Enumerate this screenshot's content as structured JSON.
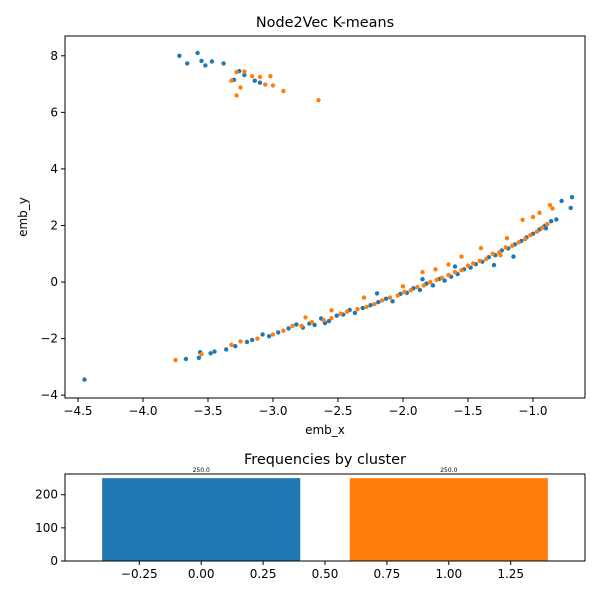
{
  "chart_data": [
    {
      "type": "scatter",
      "title": "Node2Vec K-means",
      "xlabel": "emb_x",
      "ylabel": "emb_y",
      "xlim": [
        -4.6,
        -0.6
      ],
      "ylim": [
        -4.1,
        8.7
      ],
      "xticks": [
        -4.5,
        -4.0,
        -3.5,
        -3.0,
        -2.5,
        -2.0,
        -1.5,
        -1.0
      ],
      "xtick_labels": [
        "−4.5",
        "−4.0",
        "−3.5",
        "−3.0",
        "−2.5",
        "−2.0",
        "−1.5",
        "−1.0"
      ],
      "yticks": [
        -4,
        -2,
        0,
        2,
        4,
        6,
        8
      ],
      "ytick_labels": [
        "−4",
        "−2",
        "0",
        "2",
        "4",
        "6",
        "8"
      ],
      "grid": false,
      "series": [
        {
          "color": "#1f77b4",
          "points": [
            [
              -3.72,
              8.0
            ],
            [
              -3.58,
              8.1
            ],
            [
              -3.55,
              7.82
            ],
            [
              -3.47,
              7.8
            ],
            [
              -3.38,
              7.73
            ],
            [
              -3.66,
              7.73
            ],
            [
              -3.52,
              7.66
            ],
            [
              -3.26,
              7.46
            ],
            [
              -3.22,
              7.32
            ],
            [
              -3.3,
              7.15
            ],
            [
              -3.14,
              7.12
            ],
            [
              -3.1,
              7.05
            ],
            [
              -4.45,
              -3.45
            ],
            [
              -3.67,
              -2.72
            ],
            [
              -3.57,
              -2.68
            ],
            [
              -3.56,
              -2.48
            ],
            [
              -3.48,
              -2.52
            ],
            [
              -3.45,
              -2.46
            ],
            [
              -3.36,
              -2.38
            ],
            [
              -3.29,
              -2.27
            ],
            [
              -3.2,
              -2.12
            ],
            [
              -3.16,
              -2.05
            ],
            [
              -3.08,
              -1.85
            ],
            [
              -3.03,
              -1.92
            ],
            [
              -2.96,
              -1.78
            ],
            [
              -2.88,
              -1.64
            ],
            [
              -2.82,
              -1.5
            ],
            [
              -2.77,
              -1.61
            ],
            [
              -2.72,
              -1.47
            ],
            [
              -2.68,
              -1.52
            ],
            [
              -2.63,
              -1.29
            ],
            [
              -2.57,
              -1.38
            ],
            [
              -2.51,
              -1.19
            ],
            [
              -2.46,
              -1.15
            ],
            [
              -2.41,
              -0.99
            ],
            [
              -2.37,
              -1.09
            ],
            [
              -2.31,
              -0.92
            ],
            [
              -2.25,
              -0.82
            ],
            [
              -2.19,
              -0.71
            ],
            [
              -2.13,
              -0.59
            ],
            [
              -2.08,
              -0.68
            ],
            [
              -2.02,
              -0.42
            ],
            [
              -1.97,
              -0.38
            ],
            [
              -1.92,
              -0.22
            ],
            [
              -1.87,
              -0.28
            ],
            [
              -1.82,
              -0.06
            ],
            [
              -1.77,
              -0.12
            ],
            [
              -1.72,
              0.11
            ],
            [
              -1.68,
              0.05
            ],
            [
              -1.63,
              0.19
            ],
            [
              -1.58,
              0.28
            ],
            [
              -1.53,
              0.45
            ],
            [
              -1.48,
              0.51
            ],
            [
              -1.44,
              0.63
            ],
            [
              -1.39,
              0.72
            ],
            [
              -1.34,
              0.88
            ],
            [
              -1.29,
              0.95
            ],
            [
              -1.24,
              1.12
            ],
            [
              -1.19,
              1.19
            ],
            [
              -1.14,
              1.33
            ],
            [
              -1.09,
              1.45
            ],
            [
              -1.05,
              1.58
            ],
            [
              -1.0,
              1.71
            ],
            [
              -0.95,
              1.86
            ],
            [
              -0.91,
              1.98
            ],
            [
              -0.86,
              2.15
            ],
            [
              -0.82,
              2.21
            ],
            [
              -0.78,
              2.87
            ],
            [
              -0.7,
              3.0
            ],
            [
              -0.71,
              2.62
            ],
            [
              -1.85,
              0.1
            ],
            [
              -1.6,
              0.55
            ],
            [
              -1.3,
              0.6
            ],
            [
              -2.2,
              -0.4
            ],
            [
              -1.15,
              0.9
            ],
            [
              -0.9,
              1.9
            ],
            [
              -2.6,
              -1.45
            ]
          ]
        },
        {
          "color": "#ff7f0e",
          "points": [
            [
              -3.28,
              7.42
            ],
            [
              -3.22,
              7.45
            ],
            [
              -3.32,
              7.12
            ],
            [
              -3.16,
              7.28
            ],
            [
              -3.1,
              7.25
            ],
            [
              -3.06,
              6.98
            ],
            [
              -3.02,
              7.28
            ],
            [
              -3.25,
              6.88
            ],
            [
              -3.28,
              6.6
            ],
            [
              -3.0,
              6.95
            ],
            [
              -2.92,
              6.75
            ],
            [
              -2.65,
              6.43
            ],
            [
              -3.75,
              -2.76
            ],
            [
              -3.55,
              -2.55
            ],
            [
              -3.32,
              -2.22
            ],
            [
              -3.25,
              -2.1
            ],
            [
              -3.12,
              -2.0
            ],
            [
              -3.0,
              -1.85
            ],
            [
              -2.92,
              -1.72
            ],
            [
              -2.85,
              -1.55
            ],
            [
              -2.78,
              -1.55
            ],
            [
              -2.7,
              -1.42
            ],
            [
              -2.61,
              -1.35
            ],
            [
              -2.55,
              -1.28
            ],
            [
              -2.48,
              -1.12
            ],
            [
              -2.43,
              -1.05
            ],
            [
              -2.35,
              -0.96
            ],
            [
              -2.28,
              -0.88
            ],
            [
              -2.22,
              -0.78
            ],
            [
              -2.16,
              -0.65
            ],
            [
              -2.1,
              -0.55
            ],
            [
              -2.04,
              -0.48
            ],
            [
              -1.99,
              -0.35
            ],
            [
              -1.94,
              -0.29
            ],
            [
              -1.89,
              -0.18
            ],
            [
              -1.84,
              -0.12
            ],
            [
              -1.79,
              0.0
            ],
            [
              -1.74,
              0.08
            ],
            [
              -1.7,
              0.15
            ],
            [
              -1.65,
              0.25
            ],
            [
              -1.6,
              0.35
            ],
            [
              -1.55,
              0.42
            ],
            [
              -1.5,
              0.58
            ],
            [
              -1.46,
              0.66
            ],
            [
              -1.41,
              0.75
            ],
            [
              -1.36,
              0.82
            ],
            [
              -1.31,
              1.0
            ],
            [
              -1.26,
              1.05
            ],
            [
              -1.21,
              1.22
            ],
            [
              -1.16,
              1.28
            ],
            [
              -1.11,
              1.4
            ],
            [
              -1.06,
              1.52
            ],
            [
              -1.02,
              1.66
            ],
            [
              -0.97,
              1.78
            ],
            [
              -0.93,
              1.92
            ],
            [
              -0.89,
              2.05
            ],
            [
              -0.85,
              2.6
            ],
            [
              -0.87,
              2.72
            ],
            [
              -1.08,
              2.2
            ],
            [
              -0.95,
              2.45
            ],
            [
              -1.4,
              1.2
            ],
            [
              -1.65,
              0.62
            ],
            [
              -1.85,
              0.35
            ],
            [
              -2.0,
              -0.15
            ],
            [
              -2.3,
              -0.55
            ],
            [
              -2.55,
              -1.0
            ],
            [
              -2.75,
              -1.25
            ],
            [
              -1.2,
              1.55
            ],
            [
              -1.55,
              0.9
            ],
            [
              -1.75,
              0.45
            ],
            [
              -1.25,
              0.95
            ],
            [
              -1.0,
              2.3
            ]
          ]
        }
      ]
    },
    {
      "type": "bar",
      "title": "Frequencies by cluster",
      "categories": [
        0,
        1
      ],
      "values": [
        250.0,
        250.0
      ],
      "value_labels": [
        "250.0",
        "250.0"
      ],
      "colors": [
        "#1f77b4",
        "#ff7f0e"
      ],
      "bar_width": 0.8,
      "xlim": [
        -0.55,
        1.55
      ],
      "ylim": [
        0,
        262.5
      ],
      "xticks": [
        -0.25,
        0.0,
        0.25,
        0.5,
        0.75,
        1.0,
        1.25
      ],
      "xtick_labels": [
        "−0.25",
        "0.00",
        "0.25",
        "0.50",
        "0.75",
        "1.00",
        "1.25"
      ],
      "yticks": [
        0,
        100,
        200
      ],
      "ytick_labels": [
        "0",
        "100",
        "200"
      ],
      "grid": false
    }
  ]
}
